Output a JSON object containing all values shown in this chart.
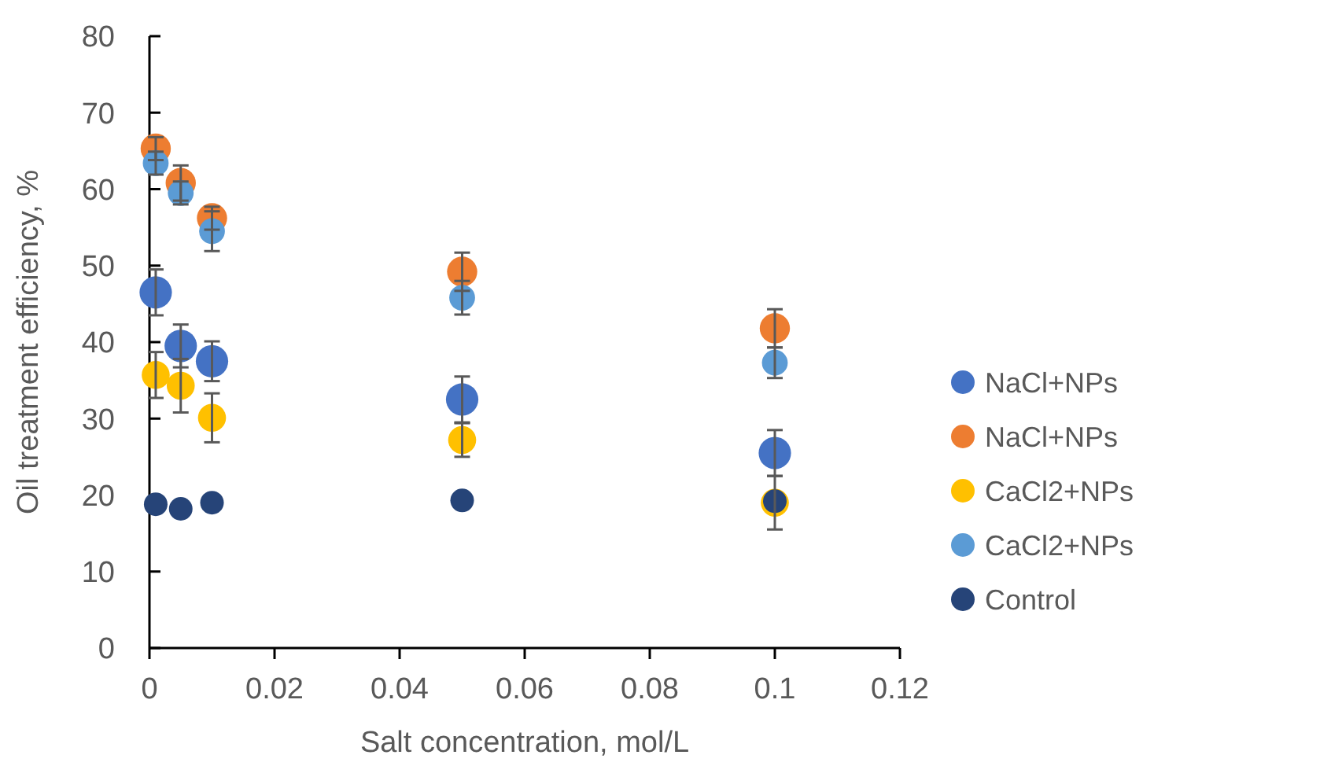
{
  "chart_data": {
    "type": "scatter",
    "xlabel": "Salt concentration, mol/L",
    "ylabel": "Oil treatment efficiency, %",
    "x": [
      0.001,
      0.005,
      0.01,
      0.05,
      0.1
    ],
    "xlim": [
      0,
      0.12
    ],
    "xticks": [
      0,
      0.02,
      0.04,
      0.06,
      0.08,
      0.1,
      0.12
    ],
    "ylim": [
      0,
      80
    ],
    "yticks": [
      0,
      10,
      20,
      30,
      40,
      50,
      60,
      70,
      80
    ],
    "grid": false,
    "legend": "right",
    "marker": "circle",
    "series": [
      {
        "name": "NaCl+NPs",
        "color": "#4472c4",
        "values": [
          46.5,
          39.5,
          37.5,
          32.5,
          25.5
        ],
        "errors": [
          3,
          2.8,
          2.6,
          3,
          3
        ]
      },
      {
        "name": "NaCl+NPs",
        "color": "#ed7d31",
        "values": [
          65.3,
          60.8,
          56.2,
          49.2,
          41.8
        ],
        "errors": [
          1.5,
          2.3,
          1.5,
          2.5,
          2.5
        ]
      },
      {
        "name": "CaCl2+NPs",
        "color": "#ffc000",
        "values": [
          35.7,
          34.3,
          30.1,
          27.2,
          19
        ],
        "errors": [
          3,
          3.5,
          3.2,
          2.2,
          3.5
        ]
      },
      {
        "name": "CaCl2+NPs",
        "color": "#5b9bd5",
        "values": [
          63.4,
          59.5,
          54.5,
          45.8,
          37.3
        ],
        "errors": [
          1.5,
          1.5,
          2.6,
          2.2,
          2
        ]
      },
      {
        "name": "Control",
        "color": "#264478",
        "values": [
          18.8,
          18.2,
          19,
          19.3,
          19.2
        ]
      }
    ]
  }
}
